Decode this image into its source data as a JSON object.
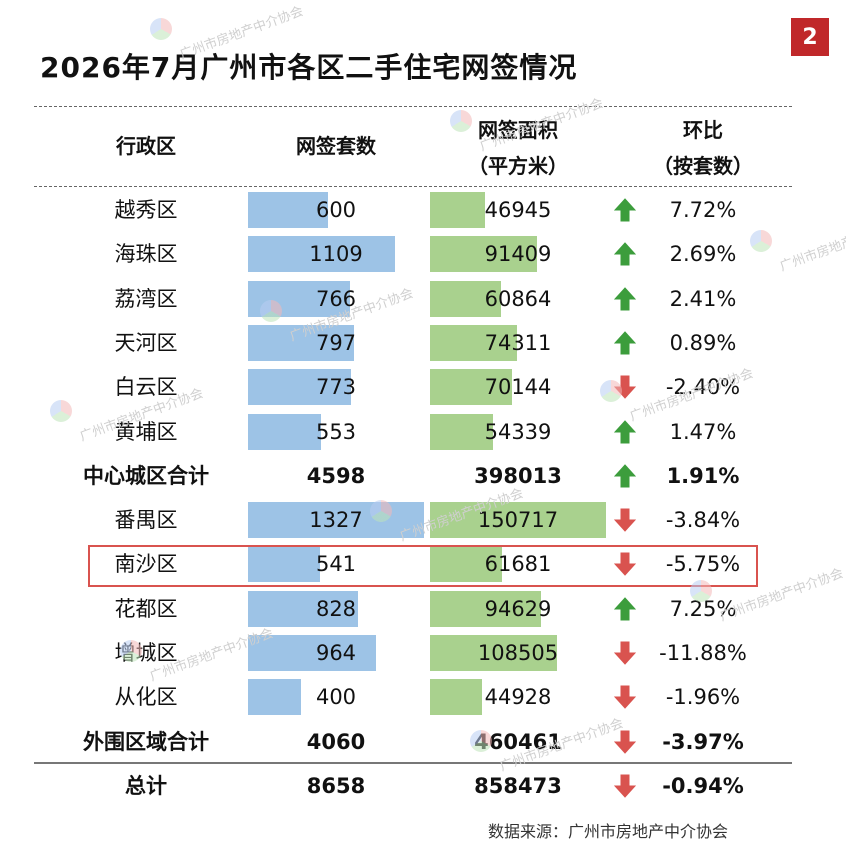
{
  "page_badge": "2",
  "source": "数据来源：广州市房地产中介协会",
  "watermark_text": "广州市房地产中介协会",
  "colors": {
    "units_bar": "#9dc3e6",
    "area_bar": "#a9d18e",
    "arrow_up": "#3c9d3c",
    "arrow_down": "#d9534f",
    "highlight": "#d9534f"
  },
  "chart_data": {
    "type": "table",
    "title": "2026年7月广州市各区二手住宅网签情况",
    "columns": {
      "district": "行政区",
      "units": "网签套数",
      "area_line1": "网签面积",
      "area_line2": "（平方米）",
      "change_line1": "环比",
      "change_line2": "（按套数）"
    },
    "units_bar_max": 1327,
    "area_bar_max": 150717,
    "rows": [
      {
        "district": "越秀区",
        "units": "600",
        "area": "46945",
        "units_value": 600,
        "area_value": 46945,
        "change": "7.72%",
        "direction": "up",
        "bar": true,
        "bold": false
      },
      {
        "district": "海珠区",
        "units": "1109",
        "area": "91409",
        "units_value": 1109,
        "area_value": 91409,
        "change": "2.69%",
        "direction": "up",
        "bar": true,
        "bold": false
      },
      {
        "district": "荔湾区",
        "units": "766",
        "area": "60864",
        "units_value": 766,
        "area_value": 60864,
        "change": "2.41%",
        "direction": "up",
        "bar": true,
        "bold": false
      },
      {
        "district": "天河区",
        "units": "797",
        "area": "74311",
        "units_value": 797,
        "area_value": 74311,
        "change": "0.89%",
        "direction": "up",
        "bar": true,
        "bold": false
      },
      {
        "district": "白云区",
        "units": "773",
        "area": "70144",
        "units_value": 773,
        "area_value": 70144,
        "change": "-2.40%",
        "direction": "down",
        "bar": true,
        "bold": false
      },
      {
        "district": "黄埔区",
        "units": "553",
        "area": "54339",
        "units_value": 553,
        "area_value": 54339,
        "change": "1.47%",
        "direction": "up",
        "bar": true,
        "bold": false
      },
      {
        "district": "中心城区合计",
        "units": "4598",
        "area": "398013",
        "units_value": 4598,
        "area_value": 398013,
        "change": "1.91%",
        "direction": "up",
        "bar": false,
        "bold": true
      },
      {
        "district": "番禺区",
        "units": "1327",
        "area": "150717",
        "units_value": 1327,
        "area_value": 150717,
        "change": "-3.84%",
        "direction": "down",
        "bar": true,
        "bold": false
      },
      {
        "district": "南沙区",
        "units": "541",
        "area": "61681",
        "units_value": 541,
        "area_value": 61681,
        "change": "-5.75%",
        "direction": "down",
        "bar": true,
        "bold": false,
        "highlight": true
      },
      {
        "district": "花都区",
        "units": "828",
        "area": "94629",
        "units_value": 828,
        "area_value": 94629,
        "change": "7.25%",
        "direction": "up",
        "bar": true,
        "bold": false
      },
      {
        "district": "增城区",
        "units": "964",
        "area": "108505",
        "units_value": 964,
        "area_value": 108505,
        "change": "-11.88%",
        "direction": "down",
        "bar": true,
        "bold": false
      },
      {
        "district": "从化区",
        "units": "400",
        "area": "44928",
        "units_value": 400,
        "area_value": 44928,
        "change": "-1.96%",
        "direction": "down",
        "bar": true,
        "bold": false
      },
      {
        "district": "外围区域合计",
        "units": "4060",
        "area": "460461",
        "units_value": 4060,
        "area_value": 460461,
        "change": "-3.97%",
        "direction": "down",
        "bar": false,
        "bold": true
      },
      {
        "district": "总计",
        "units": "8658",
        "area": "858473",
        "units_value": 8658,
        "area_value": 858473,
        "change": "-0.94%",
        "direction": "down",
        "bar": false,
        "bold": true
      }
    ]
  }
}
